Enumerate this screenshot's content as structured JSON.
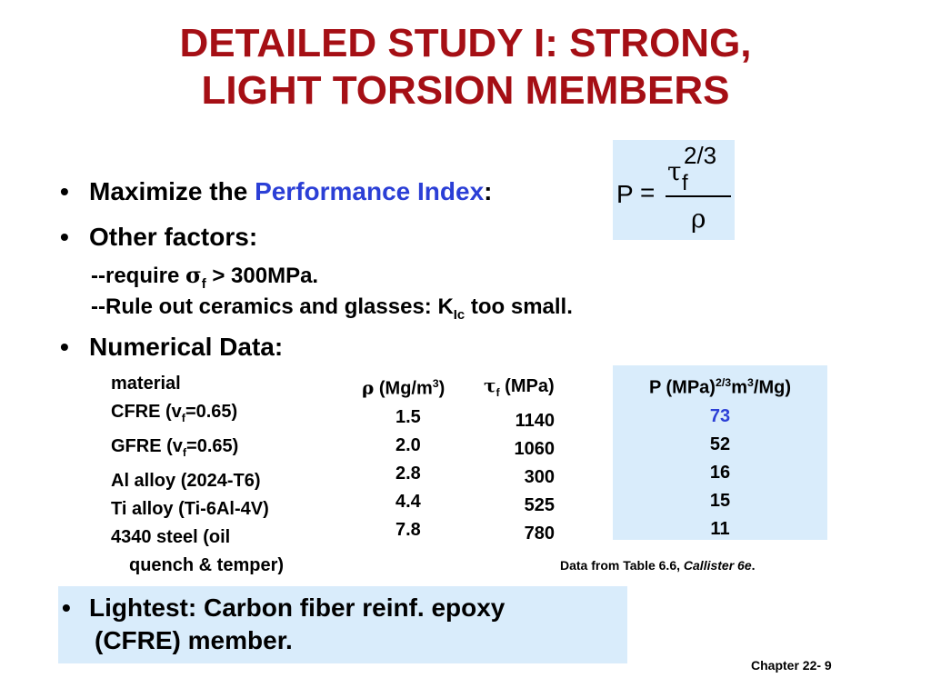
{
  "title": {
    "line1": "DETAILED STUDY I:  STRONG,",
    "line2": "LIGHT TORSION MEMBERS"
  },
  "bullets": {
    "maximize_prefix": "Maximize the ",
    "maximize_highlight": "Performance Index",
    "maximize_suffix": ":",
    "other_factors": "Other factors:",
    "require_prefix": "--require ",
    "require_sigma": "σ",
    "require_sub": "f",
    "require_suffix": " > 300MPa.",
    "ruleout_prefix": "--Rule out ceramics and glasses:  K",
    "ruleout_sub": "Ic",
    "ruleout_suffix": "  too small.",
    "numerical": "Numerical Data:",
    "lightest_line1": "Lightest:  Carbon fiber reinf. epoxy",
    "lightest_line2": "(CFRE) member."
  },
  "formula": {
    "p": "P",
    "equals": "=",
    "tau": "τ",
    "tau_sub": "f",
    "exponent": "2/3",
    "rho": "ρ"
  },
  "table": {
    "headers": {
      "material": "material",
      "rho_symbol": "ρ",
      "rho_unit_prefix": " (Mg/m",
      "rho_unit_sup": "3",
      "rho_unit_suffix": ")",
      "tau_symbol": "τ",
      "tau_sub": "f",
      "tau_unit": " (MPa)",
      "p_prefix": "P (MPa)",
      "p_sup1": "2/3",
      "p_mid": "m",
      "p_sup2": "3",
      "p_suffix": "/Mg)"
    },
    "materials": [
      {
        "name": "CFRE (v",
        "sub": "f",
        "tail": "=0.65)"
      },
      {
        "name": "GFRE (v",
        "sub": "f",
        "tail": "=0.65)"
      },
      {
        "name": "Al alloy (2024-T6)",
        "sub": "",
        "tail": ""
      },
      {
        "name": "Ti alloy (Ti-6Al-4V)",
        "sub": "",
        "tail": ""
      },
      {
        "name": "4340 steel (oil",
        "sub": "",
        "tail": ""
      }
    ],
    "material_continuation": "quench & temper)",
    "rho_values": [
      "1.5",
      "2.0",
      "2.8",
      "4.4",
      "7.8"
    ],
    "tau_values": [
      "1140",
      "1060",
      "300",
      "525",
      "780"
    ],
    "p_values": [
      "73",
      "52",
      "16",
      "15",
      "11"
    ]
  },
  "source": {
    "prefix": "Data from Table 6.6, ",
    "italic": "Callister 6e",
    "suffix": "."
  },
  "footer": "Chapter 22- 9",
  "colors": {
    "title": "#a50f15",
    "highlight": "#2b3fd6",
    "box": "#d9ecfb"
  }
}
